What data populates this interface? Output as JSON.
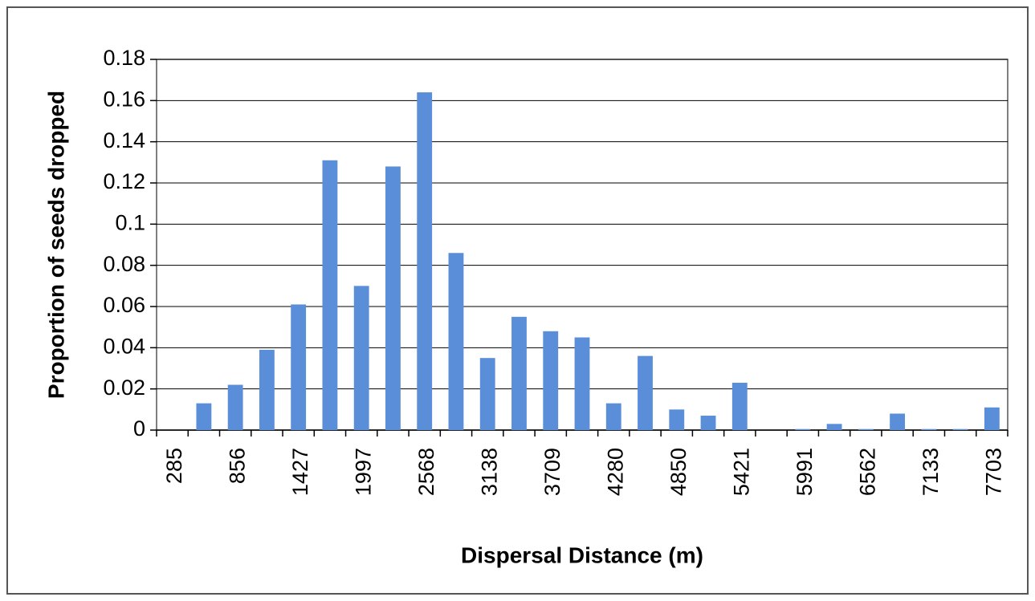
{
  "chart_data": {
    "type": "bar",
    "x_label": "Dispersal Distance (m)",
    "y_label": "Proportion of seeds dropped",
    "categories": [
      "285",
      null,
      "856",
      null,
      "1427",
      null,
      "1997",
      null,
      "2568",
      null,
      "3138",
      null,
      "3709",
      null,
      "4280",
      null,
      "4850",
      null,
      "5421",
      null,
      "5991",
      null,
      "6562",
      null,
      "7133",
      null,
      "7703"
    ],
    "values": [
      0,
      0.013,
      0.022,
      0.039,
      0.061,
      0.131,
      0.07,
      0.128,
      0.164,
      0.086,
      0.035,
      0.055,
      0.048,
      0.045,
      0.013,
      0.036,
      0.01,
      0.007,
      0.023,
      0,
      0.0005,
      0.003,
      0.0005,
      0.008,
      0.0005,
      0.0005,
      0.011
    ],
    "color": "#5b8ed8",
    "ylim": [
      0,
      0.18
    ],
    "yticks": [
      0,
      0.02,
      0.04,
      0.06,
      0.08,
      0.1,
      0.12,
      0.14,
      0.16,
      0.18
    ],
    "grid": true
  }
}
